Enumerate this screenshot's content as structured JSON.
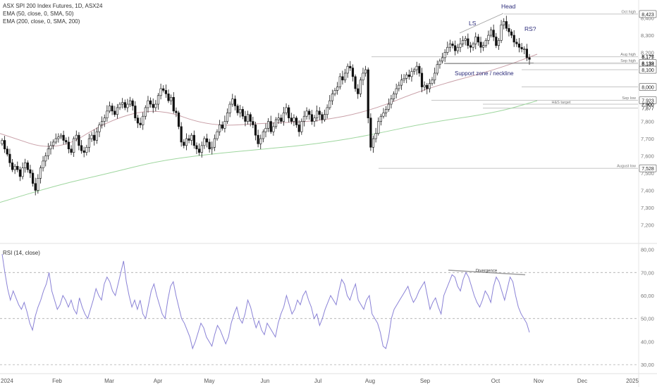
{
  "legend": {
    "main_title": "ASX SPI 200 Index Futures, 1D, ASX24",
    "ema1": "EMA (50, close, 0, SMA, 50)",
    "ema2": "EMA (200, close, 0, SMA, 200)",
    "rsi": "RSI (14, close)"
  },
  "colors": {
    "up_candle": "#ffffff",
    "down_candle": "#111111",
    "candle_outline": "#111111",
    "ema50": "#c9a0a8",
    "ema200": "#9ed69e",
    "rsi_line": "#8a82d6",
    "annotation": "#2c2c7a",
    "level_line": "#bdbdbd",
    "divergence": "#9e9e9e"
  },
  "chart_data": [
    {
      "type": "candlestick",
      "ylim": [
        7100,
        8480
      ],
      "x_ticks": [
        "2024",
        "Feb",
        "Mar",
        "Apr",
        "May",
        "Jun",
        "Jul",
        "Aug",
        "Sep",
        "Oct",
        "Nov",
        "Dec",
        "2025"
      ],
      "y_ticks": [
        "8,400",
        "8,300",
        "8,200",
        "8,100",
        "8,000",
        "7,900",
        "7,800",
        "7,700",
        "7,600",
        "7,500",
        "7,400",
        "7,300",
        "7,200"
      ],
      "price_labels": [
        {
          "value": 8423,
          "text": "8,423",
          "box": true
        },
        {
          "value": 8177,
          "text": "8,177",
          "box": false
        },
        {
          "value": 8175,
          "text": "8,175",
          "box": false
        },
        {
          "value": 8139,
          "text": "8,139",
          "box": true
        },
        {
          "value": 8134,
          "text": "8,134",
          "box": false
        },
        {
          "value": 8100,
          "text": "8,100",
          "box": true
        },
        {
          "value": 8000,
          "text": "8,000",
          "box": true
        },
        {
          "value": 7923,
          "text": "7,923",
          "box": true
        },
        {
          "value": 7900,
          "text": "7,900",
          "box": false
        },
        {
          "value": 7877,
          "text": "7,877",
          "box": false
        },
        {
          "value": 7528,
          "text": "7,528",
          "box": true
        }
      ],
      "levels": [
        {
          "name": "Oct high",
          "value": 8423,
          "from": "Oct 21"
        },
        {
          "name": "Aug high",
          "value": 8175,
          "from": "Jul 31"
        },
        {
          "name": "Sep high",
          "value": 8139,
          "from": "Sep 30"
        },
        {
          "name": "Sep low",
          "value": 7923,
          "from": "Sep 11"
        },
        {
          "name": "August low",
          "value": 7528,
          "from": "Aug 5"
        }
      ],
      "target_band": {
        "label": "H&S target",
        "low": 7877,
        "high": 7900
      },
      "annotations": [
        "LS",
        "Head",
        "RS?",
        "Support zone / neckline"
      ],
      "series": [
        {
          "name": "Price",
          "daily_close": [
            7690,
            7640,
            7610,
            7560,
            7520,
            7540,
            7520,
            7480,
            7530,
            7560,
            7520,
            7500,
            7440,
            7400,
            7470,
            7530,
            7570,
            7600,
            7640,
            7660,
            7680,
            7700,
            7710,
            7720,
            7690,
            7680,
            7640,
            7620,
            7700,
            7720,
            7660,
            7630,
            7620,
            7650,
            7700,
            7720,
            7690,
            7740,
            7780,
            7800,
            7820,
            7860,
            7890,
            7860,
            7840,
            7880,
            7900,
            7910,
            7880,
            7900,
            7920,
            7890,
            7820,
            7790,
            7780,
            7830,
            7880,
            7920,
            7900,
            7880,
            7900,
            7950,
            7990,
            7980,
            7960,
            7920,
            7940,
            7860,
            7850,
            7770,
            7680,
            7660,
            7700,
            7690,
            7720,
            7660,
            7640,
            7620,
            7660,
            7700,
            7680,
            7640,
            7650,
            7700,
            7740,
            7780,
            7760,
            7800,
            7850,
            7900,
            7930,
            7890,
            7850,
            7870,
            7830,
            7800,
            7840,
            7800,
            7780,
            7720,
            7670,
            7700,
            7740,
            7760,
            7800,
            7740,
            7770,
            7810,
            7820,
            7800,
            7850,
            7880,
            7820,
            7800,
            7820,
            7780,
            7740,
            7800,
            7830,
            7860,
            7840,
            7800,
            7820,
            7860,
            7840,
            7810,
            7840,
            7880,
            7920,
            7960,
            7980,
            8000,
            8060,
            8040,
            8080,
            8120,
            8110,
            8060,
            7990,
            7960,
            8040,
            8080,
            8100,
            7820,
            7650,
            7700,
            7730,
            7800,
            7830,
            7850,
            7870,
            7900,
            7930,
            7960,
            7990,
            8010,
            8040,
            8050,
            8070,
            8060,
            8090,
            8100,
            8120,
            8080,
            8000,
            8010,
            7990,
            8020,
            8040,
            8080,
            8130,
            8150,
            8170,
            8200,
            8230,
            8250,
            8240,
            8210,
            8230,
            8250,
            8270,
            8280,
            8240,
            8230,
            8250,
            8290,
            8260,
            8230,
            8240,
            8270,
            8300,
            8330,
            8290,
            8240,
            8270,
            8360,
            8380,
            8340,
            8320,
            8300,
            8260,
            8250,
            8230,
            8220,
            8220,
            8170,
            8160
          ]
        },
        {
          "name": "EMA (50)",
          "points": [
            [
              "2024-01-01",
              7730
            ],
            [
              "2024-02-01",
              7620
            ],
            [
              "2024-03-01",
              7810
            ],
            [
              "2024-04-01",
              7880
            ],
            [
              "2024-05-01",
              7770
            ],
            [
              "2024-06-01",
              7790
            ],
            [
              "2024-07-01",
              7800
            ],
            [
              "2024-08-01",
              7860
            ],
            [
              "2024-09-01",
              7990
            ],
            [
              "2024-10-01",
              8100
            ],
            [
              "2024-10-31",
              8190
            ]
          ]
        },
        {
          "name": "EMA (200)",
          "points": [
            [
              "2024-01-01",
              7330
            ],
            [
              "2024-02-01",
              7430
            ],
            [
              "2024-03-01",
              7500
            ],
            [
              "2024-04-01",
              7570
            ],
            [
              "2024-05-01",
              7610
            ],
            [
              "2024-06-01",
              7640
            ],
            [
              "2024-07-01",
              7670
            ],
            [
              "2024-08-01",
              7720
            ],
            [
              "2024-09-01",
              7790
            ],
            [
              "2024-10-01",
              7850
            ],
            [
              "2024-10-31",
              7920
            ]
          ]
        }
      ]
    },
    {
      "type": "line",
      "ylim": [
        27,
        82
      ],
      "y_ticks": [
        "80,00",
        "70,00",
        "60,00",
        "50,00",
        "40,00",
        "30,00"
      ],
      "levels": [
        70,
        50,
        30
      ],
      "annotations": [
        "Divergence"
      ],
      "series": [
        {
          "name": "RSI (14)",
          "values": [
            78,
            70,
            63,
            58,
            62,
            59,
            56,
            54,
            57,
            53,
            48,
            45,
            51,
            55,
            58,
            62,
            65,
            70,
            62,
            58,
            54,
            56,
            60,
            58,
            55,
            58,
            54,
            52,
            59,
            55,
            52,
            50,
            54,
            58,
            63,
            60,
            58,
            65,
            68,
            66,
            62,
            60,
            65,
            70,
            75,
            66,
            60,
            55,
            58,
            54,
            58,
            52,
            50,
            56,
            62,
            65,
            60,
            56,
            52,
            50,
            58,
            64,
            66,
            60,
            55,
            50,
            48,
            45,
            42,
            37,
            40,
            44,
            48,
            46,
            42,
            40,
            38,
            43,
            47,
            45,
            42,
            39,
            42,
            48,
            52,
            55,
            50,
            48,
            52,
            58,
            55,
            50,
            46,
            49,
            45,
            43,
            48,
            46,
            44,
            42,
            48,
            52,
            55,
            60,
            56,
            52,
            54,
            58,
            56,
            60,
            62,
            58,
            55,
            50,
            52,
            47,
            50,
            54,
            57,
            60,
            58,
            56,
            62,
            67,
            65,
            60,
            58,
            62,
            65,
            58,
            56,
            54,
            58,
            60,
            52,
            50,
            48,
            44,
            38,
            37,
            42,
            50,
            54,
            56,
            58,
            60,
            62,
            64,
            60,
            57,
            59,
            62,
            64,
            66,
            60,
            54,
            57,
            59,
            55,
            52,
            60,
            63,
            66,
            69,
            68,
            64,
            62,
            67,
            70,
            68,
            64,
            60,
            57,
            55,
            58,
            62,
            60,
            57,
            64,
            68,
            66,
            62,
            58,
            63,
            68,
            66,
            60,
            55,
            52,
            50,
            48,
            44
          ],
          "divergence": {
            "from": 0.681,
            "from_value": 71,
            "to": 0.8,
            "to_value": 69
          }
        }
      ]
    }
  ]
}
